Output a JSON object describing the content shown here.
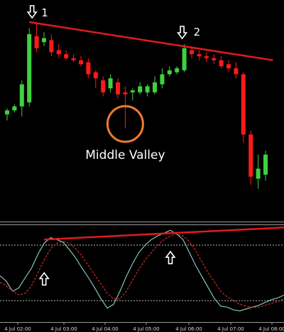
{
  "chart_data": [
    {
      "type": "candlestick",
      "colors": {
        "bull": "#3fd13f",
        "bear": "#ff1a1a",
        "trendline": "#e01b1b",
        "valley_circle": "#f07c2a",
        "background": "#000000"
      },
      "candles": [
        {
          "o": 53,
          "h": 56,
          "l": 50,
          "c": 55
        },
        {
          "o": 55,
          "h": 58,
          "l": 54,
          "c": 57
        },
        {
          "o": 57,
          "h": 70,
          "l": 52,
          "c": 68
        },
        {
          "o": 59,
          "h": 96,
          "l": 57,
          "c": 93
        },
        {
          "o": 92,
          "h": 99,
          "l": 84,
          "c": 86
        },
        {
          "o": 89,
          "h": 94,
          "l": 87,
          "c": 91
        },
        {
          "o": 90,
          "h": 93,
          "l": 82,
          "c": 84
        },
        {
          "o": 85,
          "h": 88,
          "l": 81,
          "c": 83
        },
        {
          "o": 83,
          "h": 85,
          "l": 80,
          "c": 81
        },
        {
          "o": 81,
          "h": 83,
          "l": 79,
          "c": 80
        },
        {
          "o": 80,
          "h": 82,
          "l": 77,
          "c": 78
        },
        {
          "o": 79,
          "h": 81,
          "l": 71,
          "c": 73
        },
        {
          "o": 74,
          "h": 75,
          "l": 66,
          "c": 71
        },
        {
          "o": 70,
          "h": 72,
          "l": 62,
          "c": 64
        },
        {
          "o": 66,
          "h": 73,
          "l": 64,
          "c": 71
        },
        {
          "o": 69,
          "h": 71,
          "l": 61,
          "c": 63
        },
        {
          "o": 64,
          "h": 67,
          "l": 46,
          "c": 63
        },
        {
          "o": 64,
          "h": 66,
          "l": 60,
          "c": 65
        },
        {
          "o": 64,
          "h": 69,
          "l": 63,
          "c": 67
        },
        {
          "o": 64,
          "h": 68,
          "l": 62,
          "c": 67
        },
        {
          "o": 64,
          "h": 72,
          "l": 63,
          "c": 69
        },
        {
          "o": 68,
          "h": 76,
          "l": 66,
          "c": 73
        },
        {
          "o": 73,
          "h": 77,
          "l": 72,
          "c": 75
        },
        {
          "o": 74,
          "h": 77,
          "l": 73,
          "c": 76
        },
        {
          "o": 75,
          "h": 88,
          "l": 74,
          "c": 86
        },
        {
          "o": 85,
          "h": 87,
          "l": 81,
          "c": 83
        },
        {
          "o": 83,
          "h": 85,
          "l": 80,
          "c": 82
        },
        {
          "o": 82,
          "h": 84,
          "l": 79,
          "c": 81
        },
        {
          "o": 81,
          "h": 83,
          "l": 78,
          "c": 80
        },
        {
          "o": 80,
          "h": 82,
          "l": 76,
          "c": 77
        },
        {
          "o": 78,
          "h": 80,
          "l": 74,
          "c": 76
        },
        {
          "o": 76,
          "h": 79,
          "l": 71,
          "c": 73
        },
        {
          "o": 73,
          "h": 74,
          "l": 39,
          "c": 43
        },
        {
          "o": 43,
          "h": 45,
          "l": 18,
          "c": 22
        },
        {
          "o": 21,
          "h": 33,
          "l": 16,
          "c": 26
        },
        {
          "o": 23,
          "h": 35,
          "l": 20,
          "c": 33
        }
      ],
      "price_range": [
        0,
        110
      ],
      "trendline": {
        "from_index": 3,
        "from_value": 99,
        "to_index": 36,
        "to_value": 80
      },
      "annotations": {
        "peak1": {
          "label": "1",
          "candle_index": 3
        },
        "peak2": {
          "label": "2",
          "candle_index": 24
        },
        "valley": {
          "label": "Middle Valley",
          "candle_index": 16
        }
      }
    },
    {
      "type": "line",
      "oscillator_range": [
        0,
        100
      ],
      "levels": [
        80,
        20
      ],
      "series": [
        {
          "style": "solid",
          "color": "#8fd3c8",
          "values": [
            47,
            41,
            30,
            34,
            45,
            55,
            70,
            82,
            88,
            86,
            83,
            75,
            66,
            55,
            45,
            34,
            22,
            12,
            16,
            30,
            46,
            60,
            72,
            80,
            86,
            90,
            93,
            96,
            92,
            86,
            72,
            58,
            46,
            34,
            22,
            14,
            13,
            10,
            9,
            11,
            13,
            15,
            18,
            21,
            23,
            26
          ]
        },
        {
          "style": "dashed",
          "color": "#e0302c",
          "values": [
            40,
            36,
            30,
            26,
            28,
            36,
            50,
            64,
            76,
            82,
            84,
            82,
            76,
            68,
            58,
            48,
            38,
            28,
            22,
            22,
            30,
            42,
            54,
            64,
            72,
            80,
            86,
            90,
            92,
            90,
            84,
            74,
            62,
            50,
            40,
            30,
            24,
            20,
            16,
            14,
            13,
            13,
            15,
            17,
            19,
            22
          ]
        }
      ],
      "trendline": {
        "from_index": 7,
        "from_value": 86,
        "to_index": 45,
        "to_value": 99
      },
      "markers": [
        {
          "index": 7,
          "value": 50
        },
        {
          "index": 27,
          "value": 73
        }
      ]
    }
  ],
  "x_axis": {
    "ticks": [
      "4 Jul 02:00",
      "4 Jul 03:00",
      "4 Jul 04:00",
      "4 Jul 05:00",
      "4 Jul 06:00",
      "4 Jul 07:00",
      "4 Jul 08:00"
    ]
  }
}
